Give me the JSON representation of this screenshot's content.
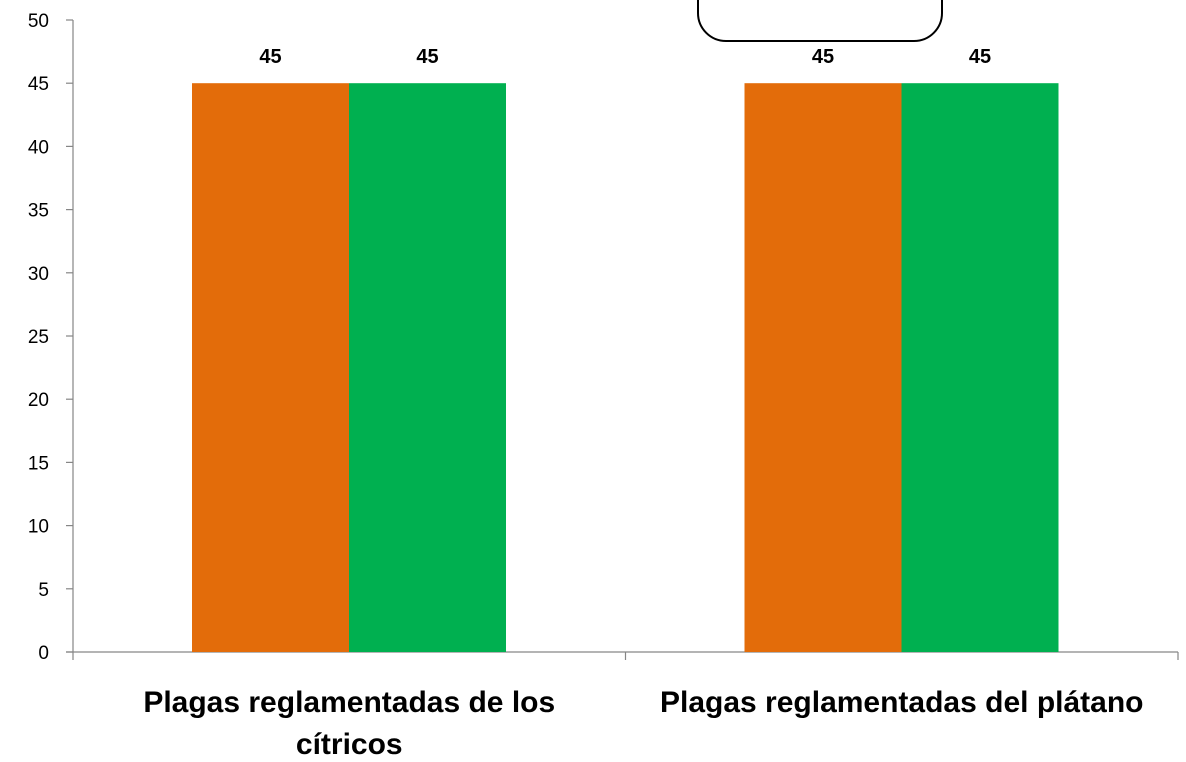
{
  "chart_data": {
    "type": "bar",
    "categories": [
      [
        "Plagas reglamentadas de los",
        "cítricos"
      ],
      [
        "Plagas reglamentadas del plátano"
      ]
    ],
    "series": [
      {
        "values": [
          45,
          45
        ],
        "color": "#E36C0A"
      },
      {
        "values": [
          45,
          45
        ],
        "color": "#00B050"
      }
    ],
    "data_labels": true,
    "ylim": [
      0,
      50
    ],
    "yticks": [
      0,
      5,
      10,
      15,
      20,
      25,
      30,
      35,
      40,
      45,
      50
    ],
    "grid": false,
    "title": "",
    "xlabel": "",
    "ylabel": ""
  }
}
